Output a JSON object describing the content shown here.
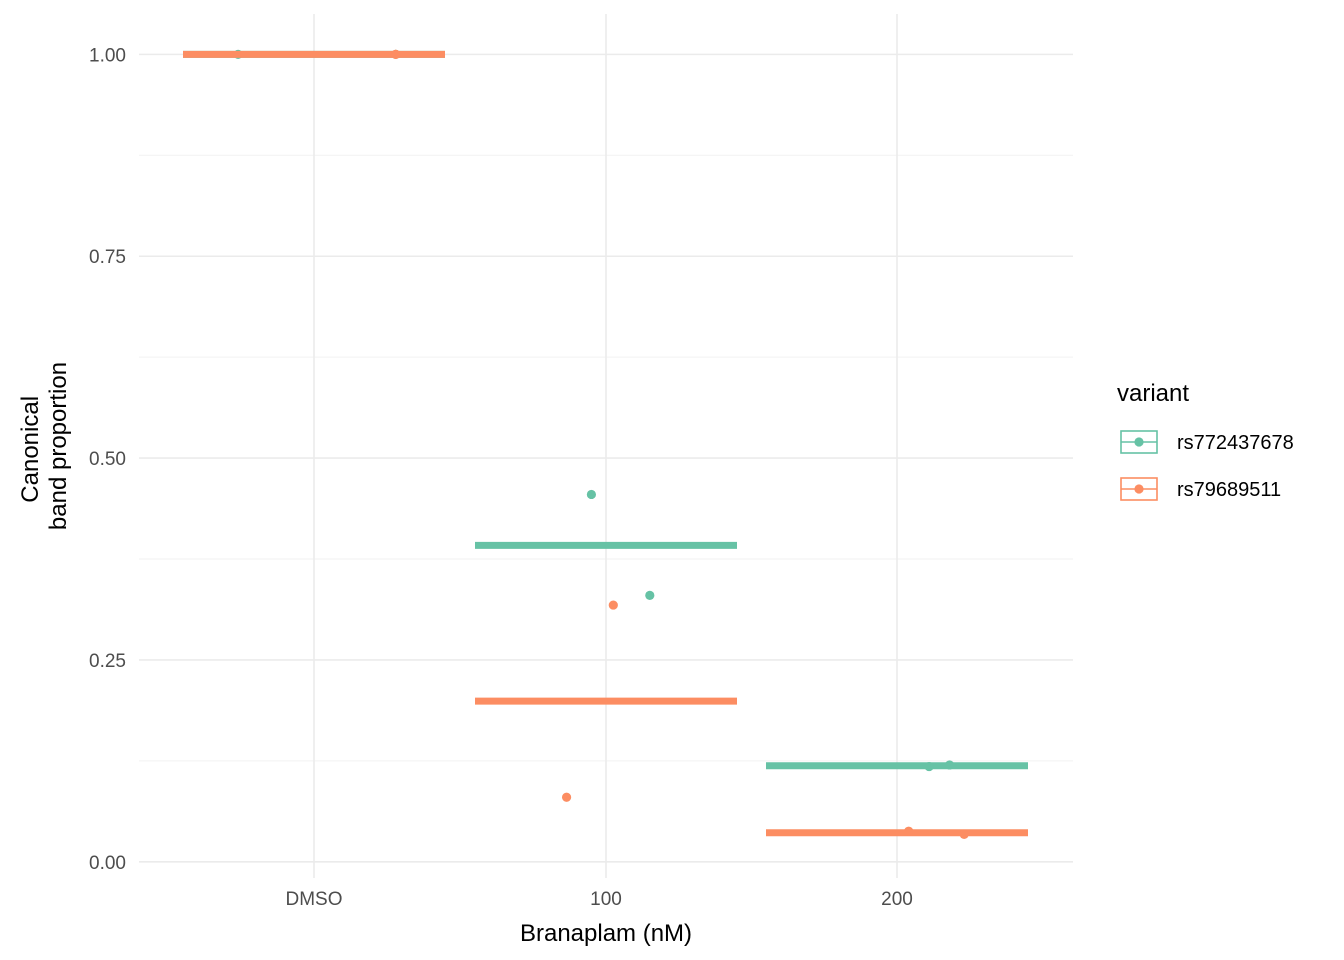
{
  "chart_data": {
    "type": "scatter",
    "xlabel": "Branaplam (nM)",
    "ylabel_lines": [
      "Canonical",
      "band proportion"
    ],
    "categories": [
      "DMSO",
      "100",
      "200"
    ],
    "ylim": [
      -0.02,
      1.05
    ],
    "yticks": [
      0.0,
      0.25,
      0.5,
      0.75,
      1.0
    ],
    "ytick_labels": [
      "0.00",
      "0.25",
      "0.50",
      "0.75",
      "1.00"
    ],
    "grid": true,
    "legend": {
      "title": "variant",
      "position": "right"
    },
    "series": [
      {
        "name": "rs772437678",
        "color": "#66c2a5",
        "points": [
          {
            "category": "DMSO",
            "y": 1.0
          },
          {
            "category": "DMSO",
            "y": 1.0
          },
          {
            "category": "100",
            "y": 0.455
          },
          {
            "category": "100",
            "y": 0.33
          },
          {
            "category": "200",
            "y": 0.12
          },
          {
            "category": "200",
            "y": 0.118
          }
        ],
        "means": [
          {
            "category": "DMSO",
            "y": 1.0
          },
          {
            "category": "100",
            "y": 0.392
          },
          {
            "category": "200",
            "y": 0.119
          }
        ]
      },
      {
        "name": "rs79689511",
        "color": "#fc8d62",
        "points": [
          {
            "category": "DMSO",
            "y": 1.0
          },
          {
            "category": "DMSO",
            "y": 1.0
          },
          {
            "category": "100",
            "y": 0.318
          },
          {
            "category": "100",
            "y": 0.08
          },
          {
            "category": "200",
            "y": 0.038
          },
          {
            "category": "200",
            "y": 0.034
          }
        ],
        "means": [
          {
            "category": "DMSO",
            "y": 1.0
          },
          {
            "category": "100",
            "y": 0.199
          },
          {
            "category": "200",
            "y": 0.036
          }
        ]
      }
    ]
  }
}
